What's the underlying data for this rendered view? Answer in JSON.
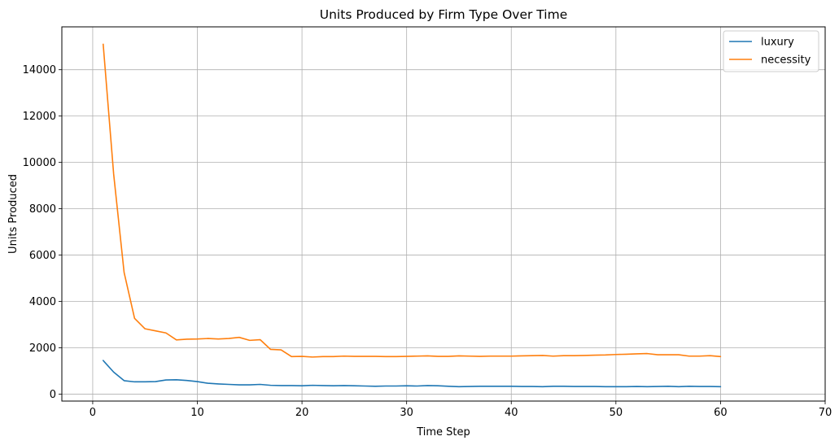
{
  "chart_data": {
    "type": "line",
    "title": "Units Produced by Firm Type Over Time",
    "xlabel": "Time Step",
    "ylabel": "Units Produced",
    "xlim": [
      -2.95,
      70
    ],
    "ylim": [
      -300,
      15850
    ],
    "xticks": [
      0,
      10,
      20,
      30,
      40,
      50,
      60,
      70
    ],
    "yticks": [
      0,
      2000,
      4000,
      6000,
      8000,
      10000,
      12000,
      14000
    ],
    "grid": true,
    "legend_position": "top-right",
    "x": [
      1,
      2,
      3,
      4,
      5,
      6,
      7,
      8,
      9,
      10,
      11,
      12,
      13,
      14,
      15,
      16,
      17,
      18,
      19,
      20,
      21,
      22,
      23,
      24,
      25,
      26,
      27,
      28,
      29,
      30,
      31,
      32,
      33,
      34,
      35,
      36,
      37,
      38,
      39,
      40,
      41,
      42,
      43,
      44,
      45,
      46,
      47,
      48,
      49,
      50,
      51,
      52,
      53,
      54,
      55,
      56,
      57,
      58,
      59,
      60
    ],
    "series": [
      {
        "name": "luxury",
        "color": "#1f77b4",
        "values": [
          1450,
          950,
          580,
          530,
          530,
          540,
          610,
          620,
          590,
          540,
          470,
          440,
          420,
          400,
          400,
          420,
          380,
          370,
          370,
          360,
          380,
          370,
          360,
          370,
          360,
          350,
          340,
          350,
          350,
          360,
          350,
          370,
          360,
          340,
          320,
          330,
          340,
          340,
          340,
          340,
          330,
          330,
          320,
          340,
          340,
          330,
          330,
          330,
          320,
          320,
          320,
          330,
          320,
          330,
          340,
          320,
          340,
          330,
          330,
          320
        ]
      },
      {
        "name": "necessity",
        "color": "#ff7f0e",
        "values": [
          15100,
          9500,
          5250,
          3270,
          2820,
          2730,
          2640,
          2340,
          2370,
          2380,
          2400,
          2380,
          2400,
          2450,
          2320,
          2350,
          1930,
          1910,
          1620,
          1630,
          1600,
          1620,
          1620,
          1640,
          1630,
          1630,
          1630,
          1620,
          1620,
          1630,
          1640,
          1650,
          1630,
          1630,
          1650,
          1640,
          1630,
          1640,
          1640,
          1640,
          1650,
          1660,
          1670,
          1640,
          1660,
          1660,
          1670,
          1680,
          1690,
          1710,
          1720,
          1740,
          1750,
          1700,
          1700,
          1700,
          1640,
          1640,
          1660,
          1620
        ]
      }
    ]
  }
}
